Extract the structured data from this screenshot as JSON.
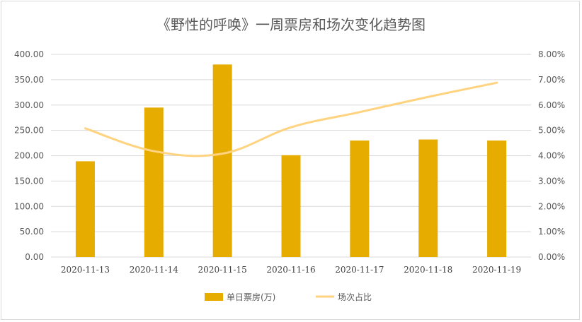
{
  "chart_data": {
    "type": "bar",
    "title": "《野性的呼唤》一周票房和场次变化趋势图",
    "categories": [
      "2020-11-13",
      "2020-11-14",
      "2020-11-15",
      "2020-11-16",
      "2020-11-17",
      "2020-11-18",
      "2020-11-19"
    ],
    "series": [
      {
        "name": "单日票房(万)",
        "type": "bar",
        "axis": "left",
        "color": "#E6AC00",
        "values": [
          189,
          295,
          380,
          201,
          230,
          232,
          230
        ]
      },
      {
        "name": "场次占比",
        "type": "line",
        "axis": "right",
        "color": "#FFD37F",
        "values": [
          0.0508,
          0.0418,
          0.0408,
          0.0512,
          0.0572,
          0.0632,
          0.0688
        ]
      }
    ],
    "ylim": [
      0,
      400
    ],
    "y_ticks": [
      "0.00",
      "50.00",
      "100.00",
      "150.00",
      "200.00",
      "250.00",
      "300.00",
      "350.00",
      "400.00"
    ],
    "y2lim": [
      0,
      0.08
    ],
    "y2_ticks": [
      "0.00%",
      "1.00%",
      "2.00%",
      "3.00%",
      "4.00%",
      "5.00%",
      "6.00%",
      "7.00%",
      "8.00%"
    ],
    "grid": true,
    "legend_position": "bottom"
  }
}
